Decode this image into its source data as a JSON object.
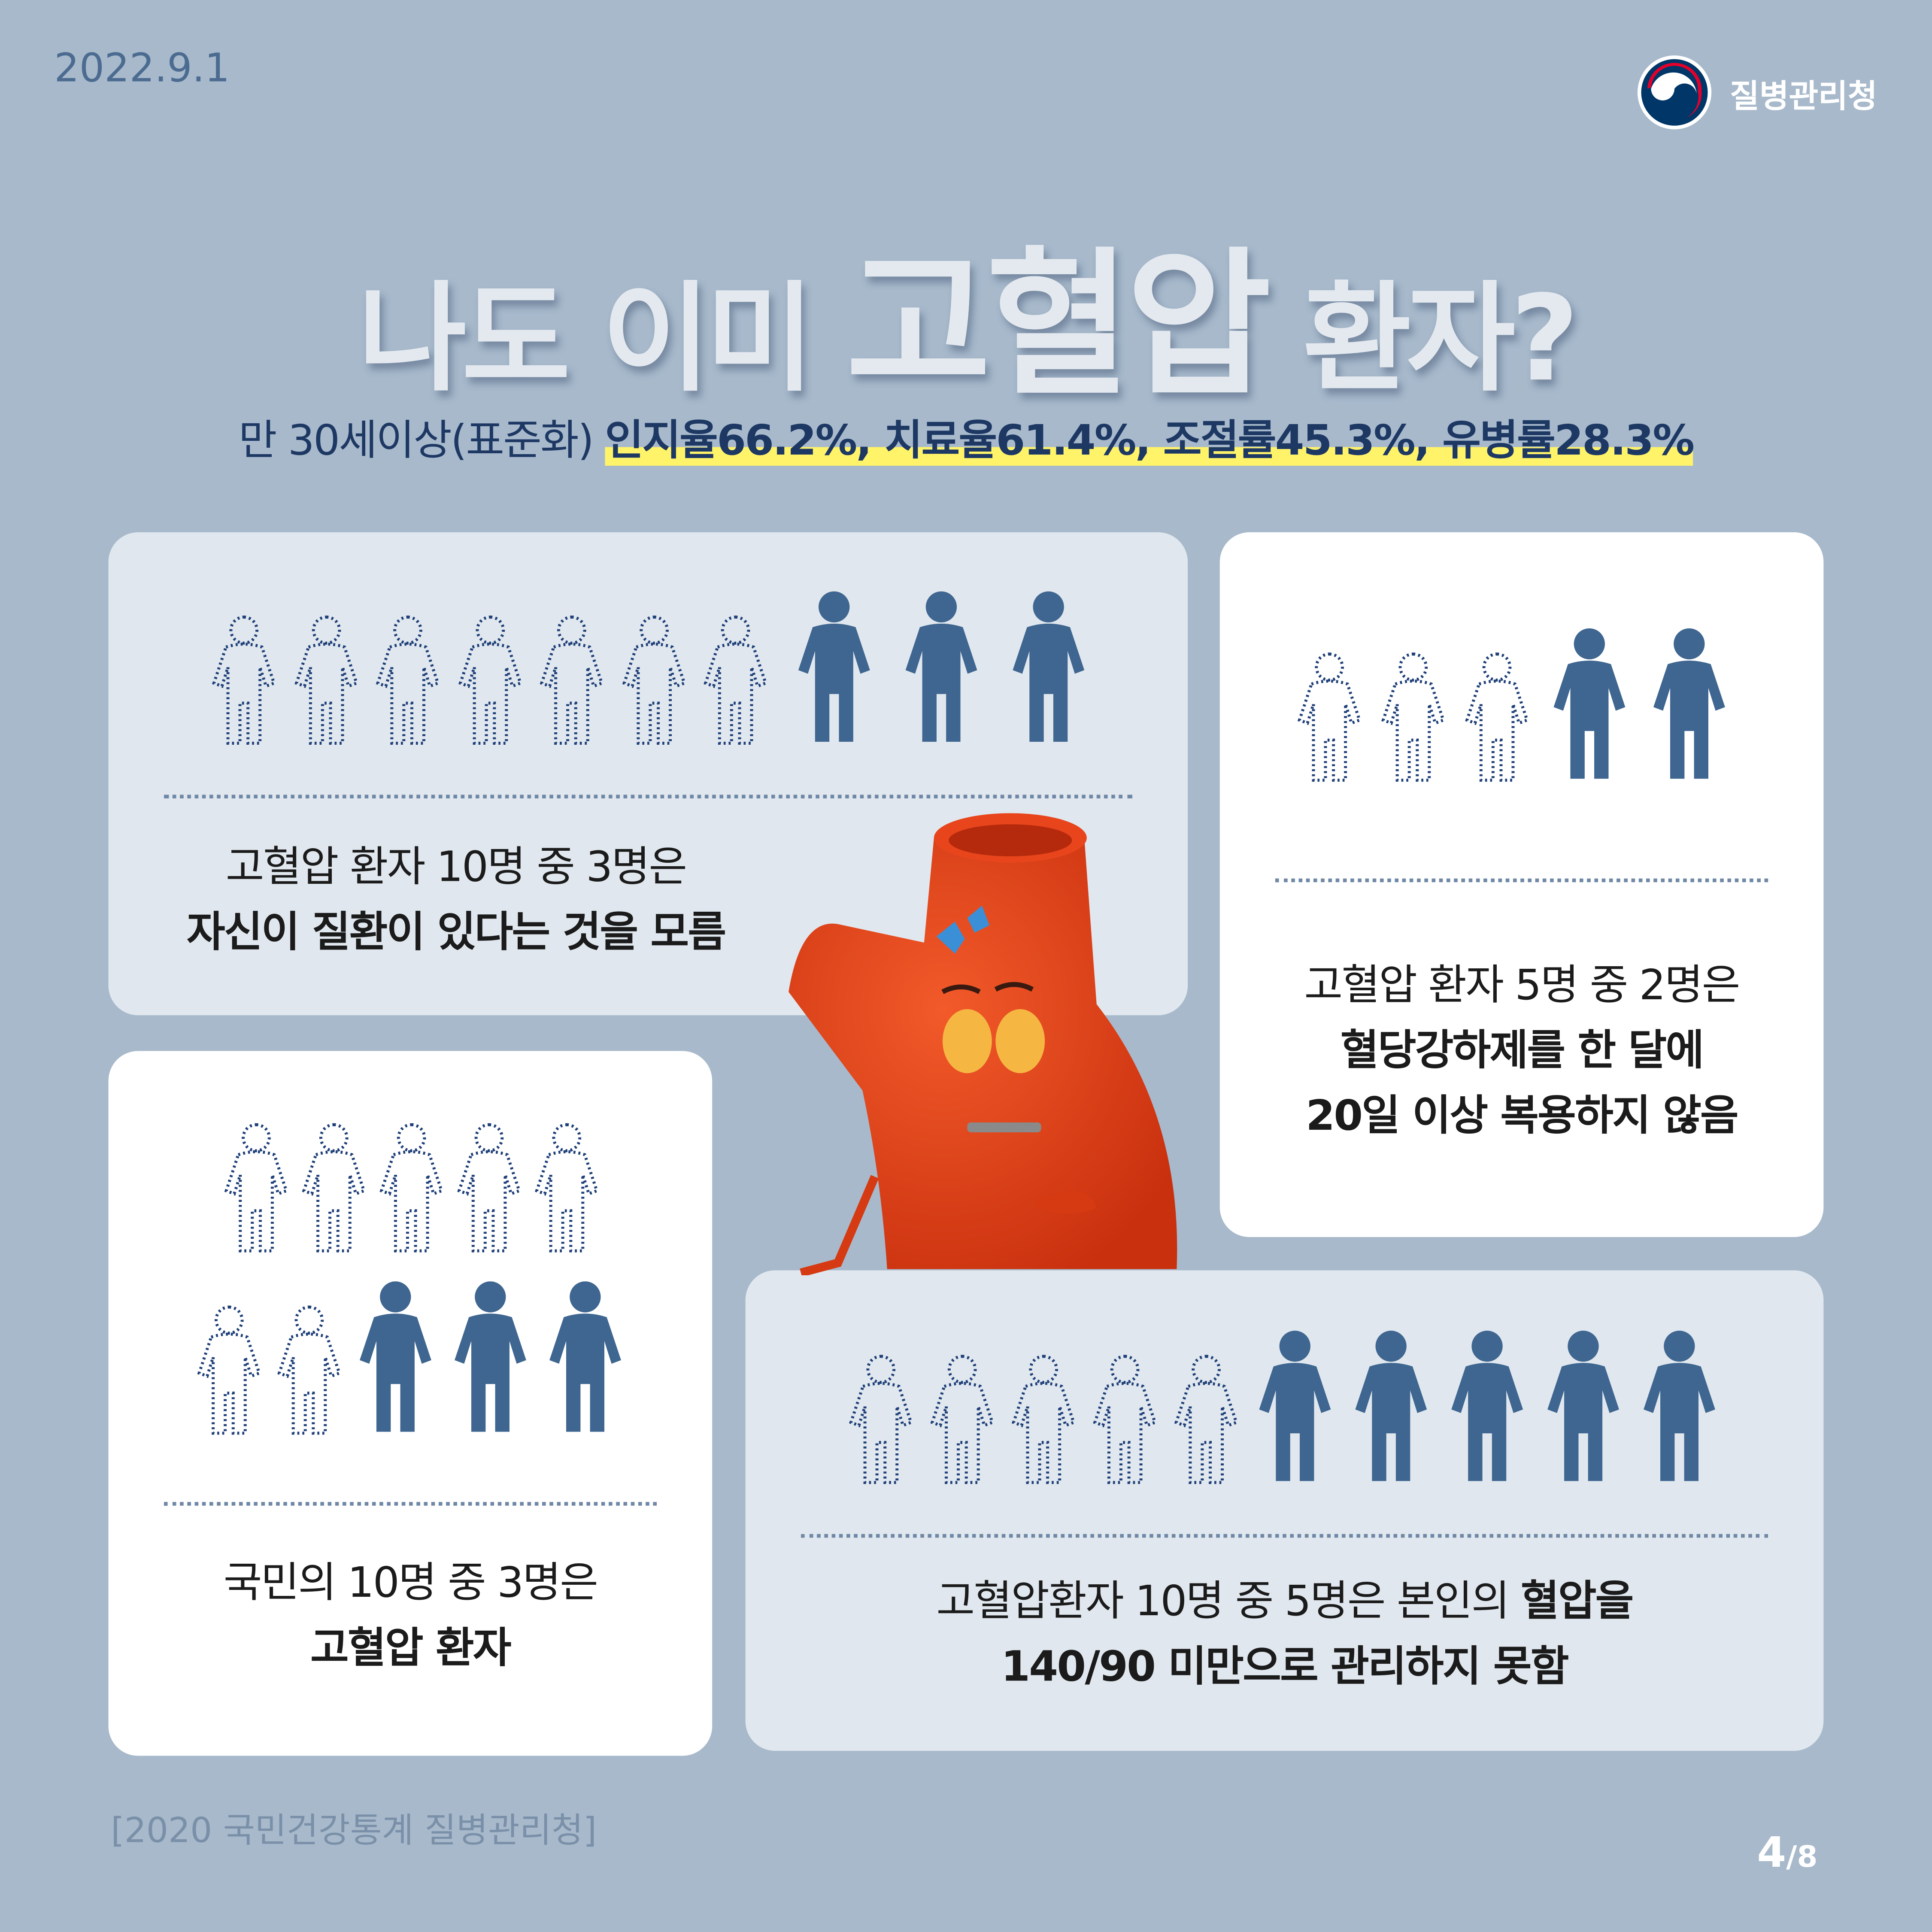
{
  "header": {
    "date": "2022.9.1",
    "org": "질병관리청"
  },
  "title": {
    "pre": "나도 이미 ",
    "emph": "고혈압",
    "post": " 환자?"
  },
  "subtitle": {
    "plain": "만 30세이상(표준화) ",
    "highlight": "인지율66.2%, 치료율61.4%, 조절률45.3%, 유병률28.3%"
  },
  "cards": [
    {
      "line1": "고혈압 환자 10명 중 3명은",
      "line2": "자신이 질환이 있다는 것을 모름",
      "outline": 7,
      "filled": 3
    },
    {
      "line1": "고혈압 환자 5명 중 2명은",
      "line2": "혈당강하제를 한 달에",
      "line3": "20일 이상 복용하지 않음",
      "outline": 3,
      "filled": 2
    },
    {
      "line1": "국민의 10명 중 3명은",
      "line2": "고혈압 환자",
      "outline": 7,
      "filled": 3
    },
    {
      "line1a": "고혈압환자 10명 중 5명은 본인의 ",
      "line1b": "혈압을",
      "line2": "140/90 미만으로 관리하지 못함",
      "outline": 5,
      "filled": 5
    }
  ],
  "footer": {
    "source": "[2020 국민건강통계 질병관리청]",
    "page_current": "4",
    "page_total": "/8"
  },
  "colors": {
    "background": "#a7b9cb",
    "filled_person": "#3f6690",
    "outline_person": "#1e3f78",
    "highlight": "#fff36a",
    "character": "#e8451c"
  }
}
